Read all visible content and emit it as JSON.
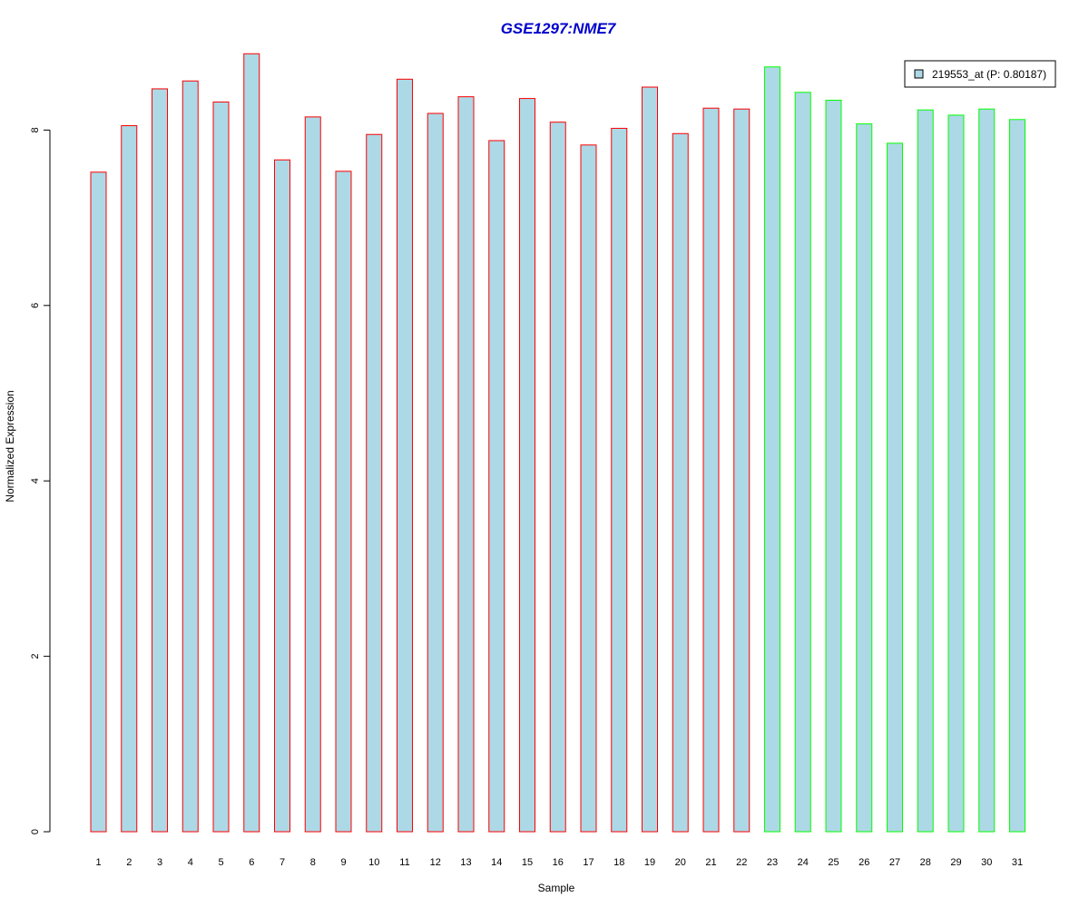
{
  "chart_data": {
    "type": "bar",
    "title": "GSE1297:NME7",
    "xlabel": "Sample",
    "ylabel": "Normalized Expression",
    "ylim": [
      0,
      8.9
    ],
    "yticks": [
      0,
      2,
      4,
      6,
      8
    ],
    "categories": [
      "1",
      "2",
      "3",
      "4",
      "5",
      "6",
      "7",
      "8",
      "9",
      "10",
      "11",
      "12",
      "13",
      "14",
      "15",
      "16",
      "17",
      "18",
      "19",
      "20",
      "21",
      "22",
      "23",
      "24",
      "25",
      "26",
      "27",
      "28",
      "29",
      "30",
      "31"
    ],
    "series": [
      {
        "name": "219553_at (P: 0.80187)",
        "values": [
          7.52,
          8.05,
          8.47,
          8.56,
          8.32,
          8.87,
          7.66,
          8.15,
          7.53,
          7.95,
          8.58,
          8.19,
          8.38,
          7.88,
          8.36,
          8.09,
          7.83,
          8.02,
          8.49,
          7.96,
          8.25,
          8.24,
          8.72,
          8.43,
          8.34,
          8.07,
          7.85,
          8.23,
          8.17,
          8.24,
          8.12
        ]
      }
    ],
    "bar_fill": "#ADD8E6",
    "group_colors": {
      "group1": "#FF0000",
      "group2": "#00FF00"
    },
    "group_split_after": 22,
    "legend": {
      "label": "219553_at (P: 0.80187)",
      "placement": "top-right",
      "swatch_color": "#ADD8E6"
    },
    "grid": false
  }
}
